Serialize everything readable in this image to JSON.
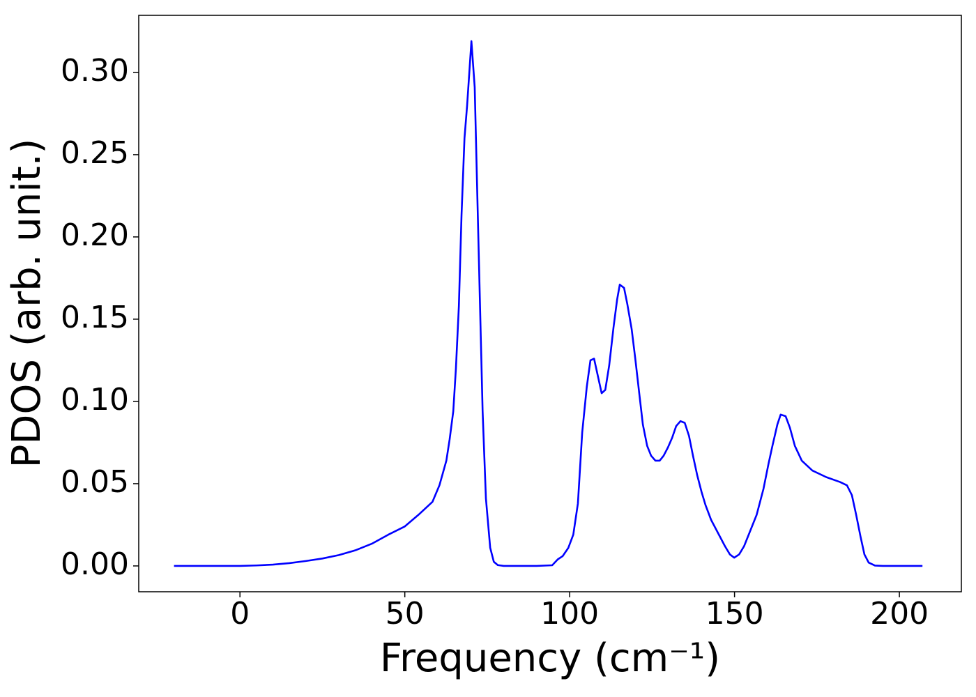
{
  "chart_data": {
    "type": "line",
    "xlabel": "Frequency (cm⁻¹)",
    "ylabel": "PDOS (arb. unit.)",
    "color": "#0000ff",
    "x": [
      -20,
      -10,
      0,
      5,
      10,
      15,
      20,
      25,
      30,
      35,
      40,
      45,
      50,
      54.1,
      58.4,
      60.5,
      62.6,
      63.6,
      64.7,
      65.5,
      66.4,
      67.2,
      68.1,
      68.9,
      70.2,
      71.2,
      72.3,
      73.6,
      74.6,
      75.9,
      77,
      78.2,
      80,
      90,
      94.7,
      96.4,
      97.9,
      99.6,
      101.1,
      102.5,
      103.8,
      105.2,
      106.3,
      107.4,
      109.7,
      110.8,
      112,
      113.3,
      114.4,
      115.2,
      116.5,
      117.5,
      118.8,
      119.9,
      121.1,
      122.2,
      123.5,
      124.7,
      126,
      127.3,
      128.5,
      129.8,
      131.1,
      132.3,
      133.6,
      134.9,
      136.2,
      137.4,
      138.7,
      140,
      141.2,
      142.9,
      145,
      147.1,
      148.6,
      149.9,
      151.4,
      152.9,
      154.5,
      156.7,
      158.8,
      160.3,
      161.5,
      163,
      164,
      165.5,
      166.8,
      168.3,
      170.4,
      173.6,
      177.8,
      182,
      184.1,
      185.6,
      186.9,
      188.2,
      189.4,
      190.7,
      192.6,
      195,
      200,
      207
    ],
    "values": [
      0,
      0,
      0,
      0.0003,
      0.0008,
      0.0017,
      0.003,
      0.0045,
      0.0066,
      0.0095,
      0.0135,
      0.019,
      0.024,
      0.031,
      0.039,
      0.049,
      0.064,
      0.077,
      0.094,
      0.12,
      0.158,
      0.213,
      0.26,
      0.28,
      0.319,
      0.291,
      0.2,
      0.094,
      0.041,
      0.011,
      0.0025,
      0.0005,
      0,
      0,
      0.0004,
      0.004,
      0.006,
      0.011,
      0.019,
      0.038,
      0.081,
      0.109,
      0.125,
      0.126,
      0.105,
      0.107,
      0.122,
      0.145,
      0.162,
      0.171,
      0.169,
      0.159,
      0.144,
      0.126,
      0.105,
      0.086,
      0.073,
      0.067,
      0.064,
      0.064,
      0.067,
      0.072,
      0.078,
      0.085,
      0.088,
      0.087,
      0.079,
      0.067,
      0.055,
      0.045,
      0.037,
      0.028,
      0.02,
      0.012,
      0.007,
      0.005,
      0.007,
      0.012,
      0.02,
      0.031,
      0.047,
      0.062,
      0.073,
      0.086,
      0.092,
      0.091,
      0.084,
      0.073,
      0.064,
      0.058,
      0.054,
      0.051,
      0.049,
      0.043,
      0.031,
      0.018,
      0.007,
      0.002,
      0.0002,
      0,
      0,
      0
    ],
    "xlim": [
      -30.7,
      218.8
    ],
    "ylim": [
      -0.0157,
      0.3347
    ],
    "xticks": [
      0,
      50,
      100,
      150,
      200
    ],
    "yticks": [
      {
        "value": 0,
        "label": "0.00"
      },
      {
        "value": 0.05,
        "label": "0.05"
      },
      {
        "value": 0.1,
        "label": "0.10"
      },
      {
        "value": 0.15,
        "label": "0.15"
      },
      {
        "value": 0.2,
        "label": "0.20"
      },
      {
        "value": 0.25,
        "label": "0.25"
      },
      {
        "value": 0.3,
        "label": "0.30"
      }
    ],
    "grid": false
  }
}
